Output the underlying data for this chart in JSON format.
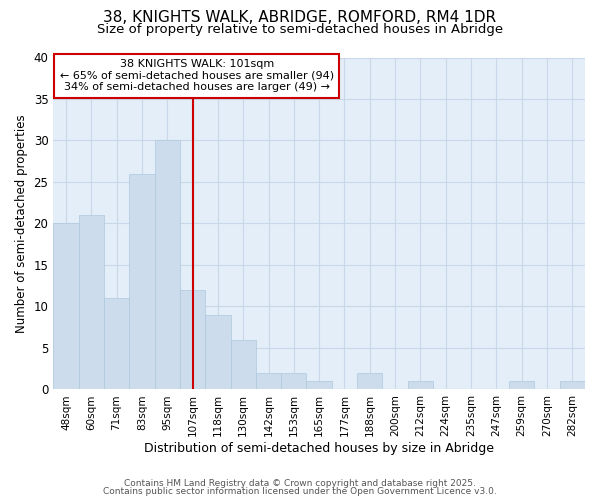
{
  "title1": "38, KNIGHTS WALK, ABRIDGE, ROMFORD, RM4 1DR",
  "title2": "Size of property relative to semi-detached houses in Abridge",
  "xlabel": "Distribution of semi-detached houses by size in Abridge",
  "ylabel": "Number of semi-detached properties",
  "bar_labels": [
    "48sqm",
    "60sqm",
    "71sqm",
    "83sqm",
    "95sqm",
    "107sqm",
    "118sqm",
    "130sqm",
    "142sqm",
    "153sqm",
    "165sqm",
    "177sqm",
    "188sqm",
    "200sqm",
    "212sqm",
    "224sqm",
    "235sqm",
    "247sqm",
    "259sqm",
    "270sqm",
    "282sqm"
  ],
  "bar_values": [
    20,
    21,
    11,
    26,
    30,
    12,
    9,
    6,
    2,
    2,
    1,
    0,
    2,
    0,
    1,
    0,
    0,
    0,
    1,
    0,
    1
  ],
  "bar_color": "#ccdcec",
  "bar_edgecolor": "#aec8de",
  "vline_x": 5.0,
  "vline_color": "#cc0000",
  "annotation_line1": "38 KNIGHTS WALK: 101sqm",
  "annotation_line2": "← 65% of semi-detached houses are smaller (94)",
  "annotation_line3": "34% of semi-detached houses are larger (49) →",
  "annotation_box_color": "#ffffff",
  "annotation_box_edgecolor": "#cc0000",
  "ylim": [
    0,
    40
  ],
  "yticks": [
    0,
    5,
    10,
    15,
    20,
    25,
    30,
    35,
    40
  ],
  "grid_color": "#c8d8e8",
  "bg_color": "#e4eef8",
  "footer1": "Contains HM Land Registry data © Crown copyright and database right 2025.",
  "footer2": "Contains public sector information licensed under the Open Government Licence v3.0.",
  "title1_fontsize": 11,
  "title2_fontsize": 9.5,
  "annotation_fontsize": 8,
  "xlabel_fontsize": 9,
  "ylabel_fontsize": 8.5,
  "ytick_fontsize": 8.5,
  "xtick_fontsize": 7.5,
  "footer_fontsize": 6.5
}
